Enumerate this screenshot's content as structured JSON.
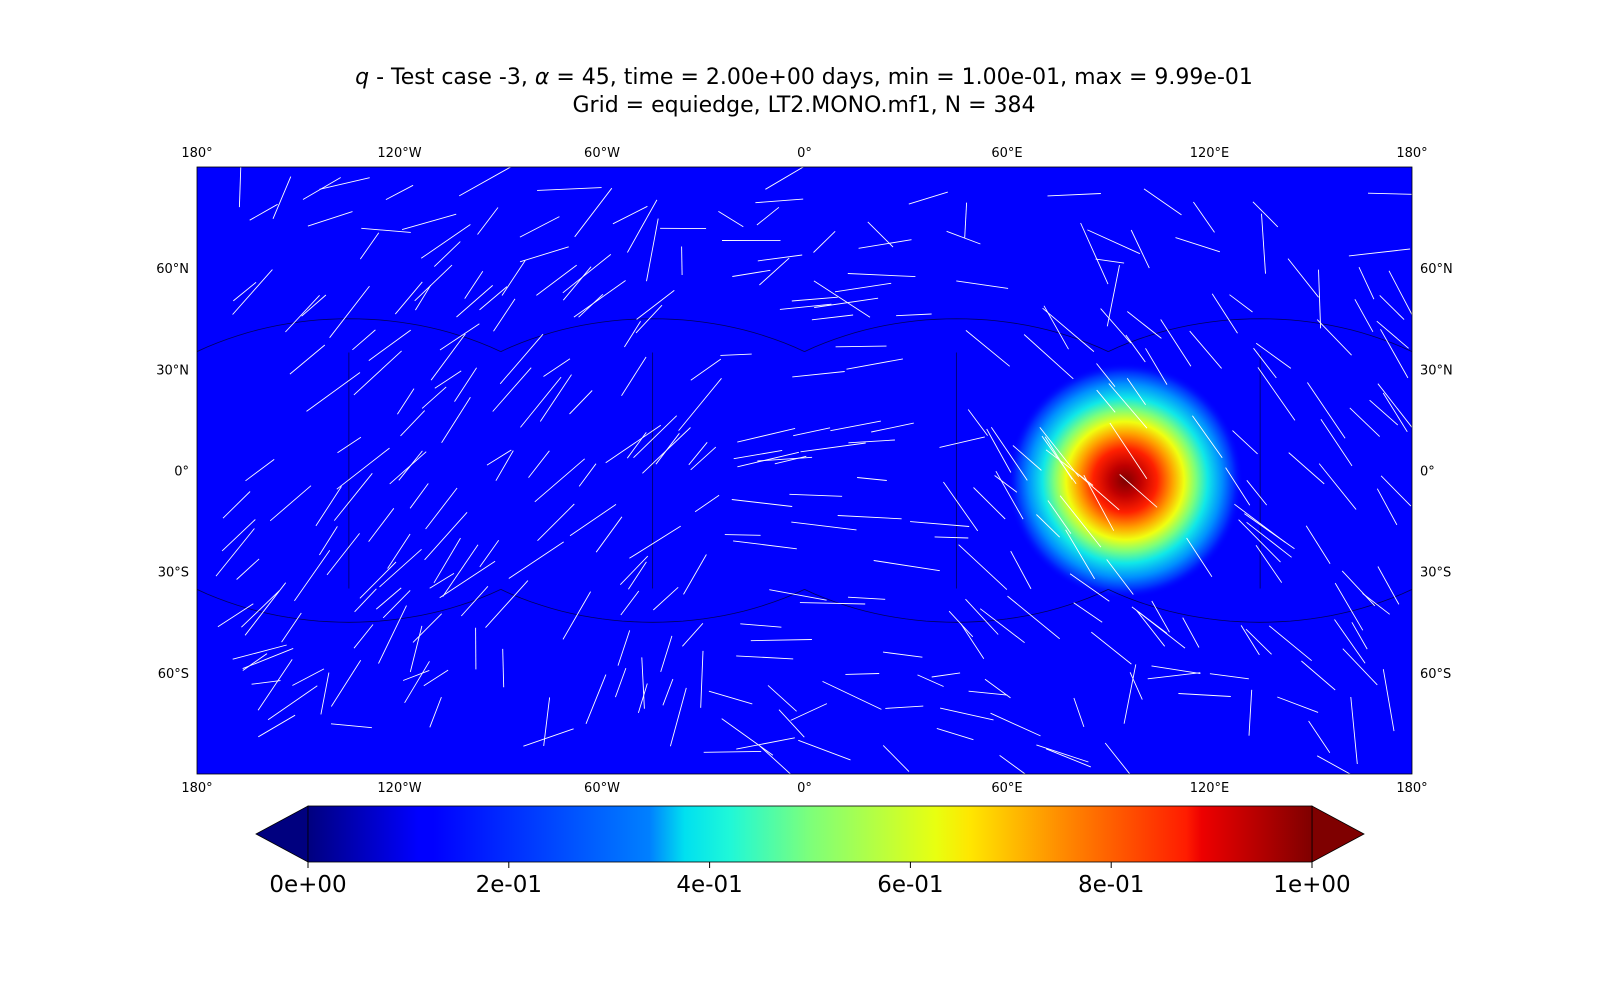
{
  "title": {
    "line1_var": "q",
    "line1_rest": " - Test case -3, ",
    "line1_alpha": "α",
    "line1_tail": " = 45, time = 2.00e+00 days, min = 1.00e-01, max = 9.99e-01",
    "line2": "Grid = equiedge, LT2.MONO.mf1, N = 384"
  },
  "chart_data": {
    "type": "heatmap",
    "projection": "plate-carree",
    "xlim": [
      -180,
      180
    ],
    "ylim": [
      -90,
      90
    ],
    "x_ticks": [
      {
        "value": -180,
        "label": "180°"
      },
      {
        "value": -120,
        "label": "120°W"
      },
      {
        "value": -60,
        "label": "60°W"
      },
      {
        "value": 0,
        "label": "0°"
      },
      {
        "value": 60,
        "label": "60°E"
      },
      {
        "value": 120,
        "label": "120°E"
      },
      {
        "value": 180,
        "label": "180°"
      }
    ],
    "y_ticks": [
      {
        "value": 60,
        "label": "60°N"
      },
      {
        "value": 30,
        "label": "30°N"
      },
      {
        "value": 0,
        "label": "0°"
      },
      {
        "value": -30,
        "label": "30°S"
      },
      {
        "value": -60,
        "label": "60°S"
      }
    ],
    "tick_label_sides": [
      "top",
      "bottom",
      "left",
      "right"
    ],
    "field": {
      "name": "q",
      "background_value": 0.1,
      "blob_center_lon": 95,
      "blob_center_lat": -3,
      "blob_peak_value": 0.999,
      "min": 0.1,
      "max": 0.999
    },
    "cubed_sphere_panel_edges": true,
    "vector_overlay": "wind arrows (white)",
    "colormap": "jet",
    "colorbar": {
      "orientation": "horizontal",
      "extend": "both",
      "range": [
        0,
        1
      ],
      "ticks": [
        {
          "value": 0.0,
          "label": "0e+00"
        },
        {
          "value": 0.2,
          "label": "2e-01"
        },
        {
          "value": 0.4,
          "label": "4e-01"
        },
        {
          "value": 0.6,
          "label": "6e-01"
        },
        {
          "value": 0.8,
          "label": "8e-01"
        },
        {
          "value": 1.0,
          "label": "1e+00"
        }
      ]
    }
  }
}
